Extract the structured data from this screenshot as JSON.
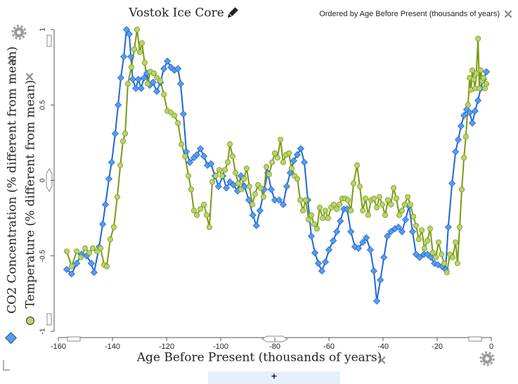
{
  "chart_data": {
    "type": "line",
    "title": "Vostok Ice Core",
    "ordering_note": "Ordered by Age Before Present (thousands of years)",
    "x_label": "Age Before Present (thousands of years)",
    "add_button": "+",
    "xlim": [
      -160,
      0
    ],
    "xticks": [
      -160,
      -140,
      -120,
      -100,
      -80,
      -60,
      -40,
      -20,
      0
    ],
    "ylim": [
      -1,
      1
    ],
    "yticks": [
      -1,
      -0.5,
      0,
      0.5,
      1
    ],
    "series": [
      {
        "name": "CO2 Concentration (% different from mean)",
        "color": "#1f66d8",
        "marker_color": "#5b9ce8",
        "marker": "diamond",
        "x": [
          -156.9,
          -155.1,
          -153.2,
          -151.4,
          -149.6,
          -147.8,
          -146.8,
          -144.9,
          -143.6,
          -142.6,
          -141.3,
          -140.3,
          -139.0,
          -137.9,
          -136.9,
          -135.8,
          -134.8,
          -133.8,
          -133.2,
          -132.5,
          -131.4,
          -130.4,
          -129.4,
          -128.3,
          -127.3,
          -126.2,
          -125.0,
          -123.6,
          -122.3,
          -121.0,
          -119.7,
          -118.4,
          -117.1,
          -115.8,
          -114.8,
          -113.8,
          -112.7,
          -111.4,
          -109.9,
          -108.8,
          -107.5,
          -106.2,
          -104.9,
          -103.6,
          -102.1,
          -100.8,
          -99.2,
          -97.9,
          -96.6,
          -95.3,
          -93.8,
          -92.5,
          -91.2,
          -89.6,
          -88.1,
          -86.8,
          -85.5,
          -83.9,
          -82.6,
          -81.3,
          -80.0,
          -78.4,
          -76.9,
          -75.6,
          -74.3,
          -73.0,
          -71.7,
          -70.4,
          -69.1,
          -67.8,
          -66.5,
          -65.2,
          -63.9,
          -62.6,
          -61.3,
          -60.0,
          -58.4,
          -57.1,
          -55.8,
          -54.5,
          -53.3,
          -51.9,
          -50.4,
          -49.1,
          -47.5,
          -46.2,
          -44.7,
          -43.4,
          -42.3,
          -41.0,
          -39.7,
          -38.4,
          -37.1,
          -35.6,
          -34.3,
          -33.0,
          -31.7,
          -30.4,
          -29.1,
          -27.8,
          -26.5,
          -24.9,
          -23.6,
          -22.3,
          -21.0,
          -19.7,
          -18.2,
          -16.9,
          -15.9,
          -14.5,
          -13.2,
          -12.2,
          -11.2,
          -10.1,
          -9.1,
          -8.0,
          -7.0,
          -6.0,
          -4.9,
          -3.9,
          -2.9,
          -1.8
        ],
        "values": [
          -0.59,
          -0.62,
          -0.55,
          -0.49,
          -0.5,
          -0.55,
          -0.61,
          -0.44,
          -0.29,
          -0.16,
          0.01,
          0.12,
          0.31,
          0.5,
          0.68,
          0.82,
          1.0,
          0.97,
          0.82,
          0.67,
          0.61,
          0.67,
          0.61,
          0.68,
          0.71,
          0.63,
          0.65,
          0.59,
          0.65,
          0.74,
          0.79,
          0.75,
          0.73,
          0.74,
          0.64,
          0.44,
          0.19,
          0.12,
          0.15,
          0.17,
          0.21,
          0.16,
          0.1,
          0.11,
          0.03,
          -0.04,
          0.03,
          -0.05,
          -0.01,
          -0.03,
          -0.07,
          0.03,
          -0.04,
          -0.13,
          -0.23,
          -0.3,
          -0.2,
          -0.06,
          0.05,
          -0.06,
          -0.13,
          -0.13,
          -0.16,
          -0.04,
          0.05,
          0.13,
          0.17,
          0.21,
          0.12,
          -0.13,
          -0.37,
          -0.48,
          -0.55,
          -0.6,
          -0.54,
          -0.46,
          -0.4,
          -0.34,
          -0.27,
          -0.19,
          -0.19,
          -0.34,
          -0.44,
          -0.45,
          -0.41,
          -0.38,
          -0.46,
          -0.6,
          -0.8,
          -0.66,
          -0.51,
          -0.37,
          -0.34,
          -0.32,
          -0.31,
          -0.34,
          -0.26,
          -0.17,
          -0.34,
          -0.49,
          -0.51,
          -0.49,
          -0.49,
          -0.51,
          -0.55,
          -0.56,
          -0.57,
          -0.59,
          -0.31,
          -0.02,
          0.19,
          0.27,
          0.36,
          0.43,
          0.47,
          0.45,
          0.38,
          0.46,
          0.53,
          0.61,
          0.67,
          0.72
        ]
      },
      {
        "name": "Temperature (% different from mean)",
        "color": "#7a9a12",
        "marker_color": "#b8d46c",
        "marker": "circle",
        "x": [
          -156.9,
          -155.1,
          -153.2,
          -151.7,
          -150.1,
          -148.6,
          -147.3,
          -145.7,
          -144.4,
          -143.1,
          -142.1,
          -140.8,
          -139.5,
          -138.2,
          -137.1,
          -136.1,
          -135.3,
          -134.3,
          -133.0,
          -131.9,
          -130.9,
          -129.9,
          -129.1,
          -128.1,
          -127.0,
          -126.0,
          -124.7,
          -123.6,
          -122.3,
          -121.0,
          -119.7,
          -118.4,
          -117.1,
          -115.8,
          -114.5,
          -113.2,
          -111.9,
          -110.9,
          -109.9,
          -108.8,
          -107.5,
          -106.2,
          -105.2,
          -104.2,
          -103.1,
          -101.8,
          -100.5,
          -99.5,
          -98.4,
          -97.4,
          -96.6,
          -95.6,
          -94.5,
          -93.5,
          -92.5,
          -91.4,
          -90.4,
          -89.4,
          -88.3,
          -87.3,
          -86.2,
          -85.2,
          -84.2,
          -83.1,
          -82.1,
          -81.0,
          -80.0,
          -79.0,
          -77.9,
          -76.9,
          -75.8,
          -74.8,
          -73.8,
          -72.7,
          -71.7,
          -70.6,
          -69.6,
          -68.6,
          -67.5,
          -66.5,
          -65.5,
          -64.4,
          -63.4,
          -62.3,
          -61.3,
          -60.3,
          -59.2,
          -58.2,
          -57.1,
          -56.1,
          -55.1,
          -54.0,
          -53.0,
          -51.9,
          -50.9,
          -49.6,
          -48.6,
          -47.5,
          -46.5,
          -45.5,
          -44.4,
          -43.4,
          -42.3,
          -41.3,
          -40.3,
          -39.2,
          -38.2,
          -37.1,
          -36.1,
          -35.1,
          -34.0,
          -33.0,
          -32.0,
          -30.9,
          -29.9,
          -28.8,
          -27.8,
          -26.8,
          -25.7,
          -24.7,
          -23.6,
          -22.6,
          -21.6,
          -20.5,
          -19.5,
          -18.4,
          -17.4,
          -16.4,
          -15.3,
          -14.3,
          -13.2,
          -12.5,
          -11.7,
          -10.9,
          -10.1,
          -9.4,
          -8.6,
          -8.0,
          -7.5,
          -7.0,
          -6.5,
          -6.0,
          -5.5,
          -4.9,
          -4.4,
          -3.9,
          -3.4,
          -2.9,
          -2.3,
          -1.8
        ],
        "values": [
          -0.47,
          -0.57,
          -0.47,
          -0.51,
          -0.45,
          -0.48,
          -0.45,
          -0.47,
          -0.45,
          -0.56,
          -0.57,
          -0.39,
          -0.31,
          -0.11,
          0.1,
          0.26,
          0.31,
          0.64,
          0.75,
          0.87,
          1.0,
          0.85,
          0.91,
          0.78,
          0.64,
          0.72,
          0.71,
          0.68,
          0.66,
          0.57,
          0.46,
          0.45,
          0.43,
          0.38,
          0.24,
          0.16,
          0.03,
          -0.06,
          -0.2,
          -0.23,
          -0.19,
          -0.16,
          -0.23,
          -0.31,
          -0.01,
          0.03,
          0.07,
          0.03,
          0.07,
          0.12,
          0.24,
          0.16,
          0.05,
          -0.02,
          -0.06,
          0.01,
          0.08,
          -0.04,
          -0.16,
          -0.09,
          -0.03,
          -0.05,
          -0.11,
          0.09,
          0.04,
          0.12,
          0.18,
          0.15,
          0.27,
          0.12,
          0.17,
          0.18,
          0.08,
          0.03,
          0.01,
          -0.13,
          -0.2,
          -0.13,
          -0.26,
          -0.23,
          -0.29,
          -0.32,
          -0.18,
          -0.25,
          -0.2,
          -0.25,
          -0.18,
          -0.16,
          -0.19,
          -0.16,
          -0.12,
          -0.12,
          -0.13,
          -0.2,
          -0.02,
          0.1,
          -0.04,
          -0.2,
          -0.12,
          -0.23,
          -0.13,
          -0.12,
          -0.18,
          -0.11,
          -0.16,
          -0.23,
          -0.13,
          -0.16,
          -0.05,
          -0.12,
          -0.23,
          -0.2,
          -0.16,
          -0.11,
          -0.16,
          -0.24,
          -0.3,
          -0.39,
          -0.33,
          -0.45,
          -0.4,
          -0.32,
          -0.48,
          -0.51,
          -0.41,
          -0.49,
          -0.55,
          -0.61,
          -0.49,
          -0.51,
          -0.41,
          -0.55,
          -0.31,
          -0.06,
          0.15,
          0.29,
          0.5,
          0.68,
          0.6,
          0.73,
          0.67,
          0.61,
          0.71,
          0.94,
          0.61,
          0.73,
          0.66,
          0.68,
          0.61,
          0.64
        ]
      }
    ]
  }
}
